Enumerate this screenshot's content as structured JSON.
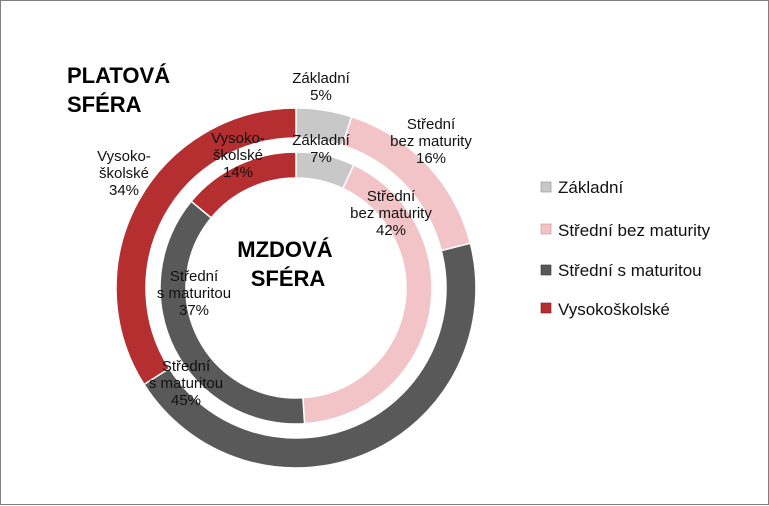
{
  "chart_data": {
    "type": "doughnut",
    "categories": [
      "Základní",
      "Střední bez maturity",
      "Střední s maturitou",
      "Vysokoškolské"
    ],
    "colors": [
      "#c8c8c8",
      "#f2c4c7",
      "#595959",
      "#b52e30"
    ],
    "legend": {
      "position": "right"
    },
    "rings": [
      {
        "name": "PLATOVÁ SFÉRA",
        "title_lines": [
          "PLATOVÁ",
          "SFÉRA"
        ],
        "values": [
          5,
          16,
          45,
          34
        ],
        "labels": [
          [
            "Základní",
            "5%"
          ],
          [
            "Střední",
            "bez maturity",
            "16%"
          ],
          [
            "Střední",
            "s maturitou",
            "45%"
          ],
          [
            "Vysoko-",
            "školské",
            "34%"
          ]
        ]
      },
      {
        "name": "MZDOVÁ SFÉRA",
        "title_lines": [
          "MZDOVÁ",
          "SFÉRA"
        ],
        "values": [
          7,
          42,
          37,
          14
        ],
        "labels": [
          [
            "Základní",
            "7%"
          ],
          [
            "Střední",
            "bez maturity",
            "42%"
          ],
          [
            "Střední",
            "s maturitou",
            "37%"
          ],
          [
            "Vysoko-",
            "školské",
            "14%"
          ]
        ]
      }
    ]
  }
}
